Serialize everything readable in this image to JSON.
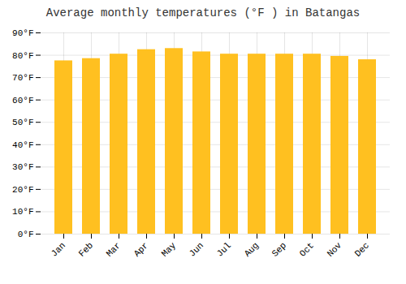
{
  "chart_data": {
    "type": "bar",
    "title": "Average monthly temperatures (°F ) in Batangas",
    "categories": [
      "Jan",
      "Feb",
      "Mar",
      "Apr",
      "May",
      "Jun",
      "Jul",
      "Aug",
      "Sep",
      "Oct",
      "Nov",
      "Dec"
    ],
    "values": [
      77.5,
      78.5,
      80.5,
      82.5,
      83.0,
      81.5,
      80.5,
      80.5,
      80.5,
      80.5,
      79.5,
      78.0
    ],
    "color": "#FFC020",
    "ylim": [
      0,
      90
    ],
    "yticks": [
      {
        "value": 0,
        "label": "0°F"
      },
      {
        "value": 10,
        "label": "10°F"
      },
      {
        "value": 20,
        "label": "20°F"
      },
      {
        "value": 30,
        "label": "30°F"
      },
      {
        "value": 40,
        "label": "40°F"
      },
      {
        "value": 50,
        "label": "50°F"
      },
      {
        "value": 60,
        "label": "60°F"
      },
      {
        "value": 70,
        "label": "70°F"
      },
      {
        "value": 80,
        "label": "80°F"
      },
      {
        "value": 90,
        "label": "90°F"
      }
    ],
    "grid": true
  }
}
